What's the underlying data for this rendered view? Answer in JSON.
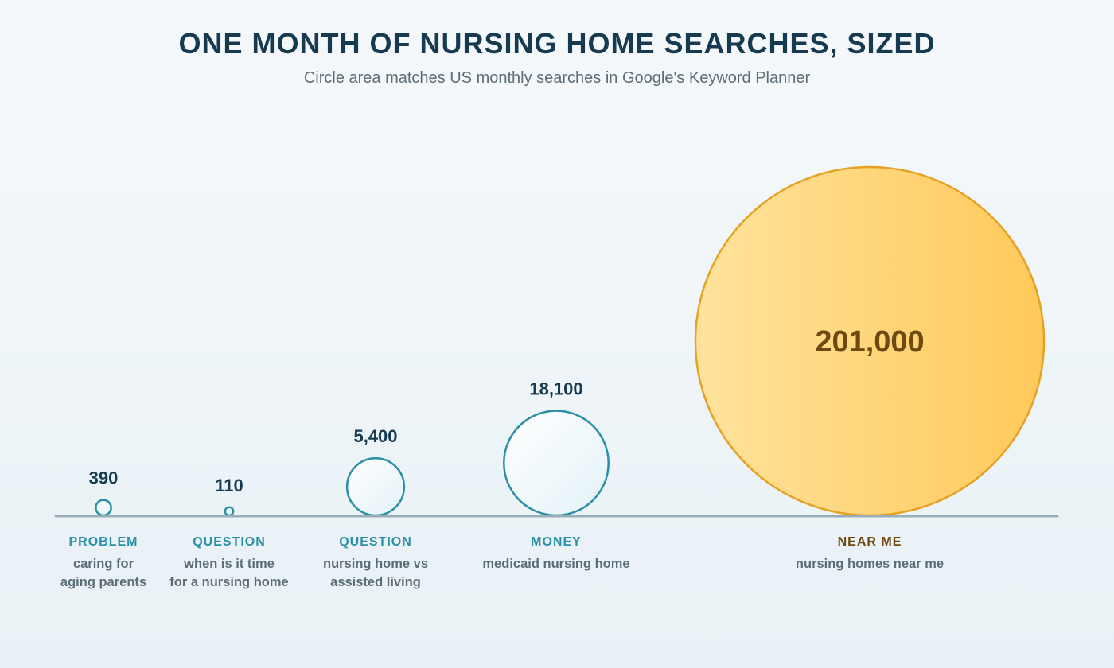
{
  "header": {
    "title": "ONE MONTH OF NURSING HOME SEARCHES, SIZED",
    "subtitle": "Circle area matches US monthly searches in Google's Keyword Planner"
  },
  "colors": {
    "teal": "#2b8fa6",
    "title": "#163a4f",
    "gray_text": "#5d6d78",
    "gold_fill_start": "#ffe39d",
    "gold_fill_end": "#ffc95a",
    "gold_stroke": "#e6a123",
    "gold_text": "#6e4a12",
    "baseline": "#9aaeb9"
  },
  "chart_data": {
    "type": "bubble",
    "encoding": "circle area proportional to monthly searches",
    "categories": [
      "PROBLEM",
      "QUESTION",
      "QUESTION",
      "MONEY",
      "NEAR ME"
    ],
    "keywords": [
      [
        "caring for",
        "aging parents"
      ],
      [
        "when is it time",
        "for a nursing home"
      ],
      [
        "nursing home vs",
        "assisted living"
      ],
      [
        "medicaid nursing home"
      ],
      [
        "nursing homes near me"
      ]
    ],
    "values": [
      390,
      110,
      5400,
      18100,
      201000
    ],
    "value_labels": [
      "390",
      "110",
      "5,400",
      "18,100",
      "201,000"
    ],
    "highlight_index": 4
  }
}
